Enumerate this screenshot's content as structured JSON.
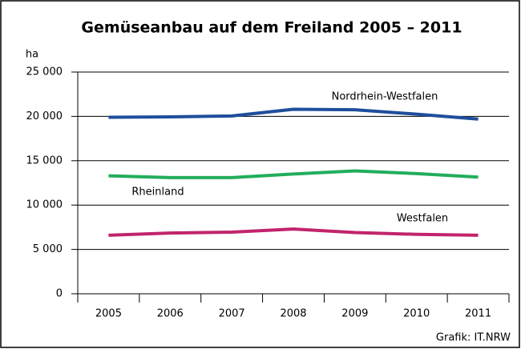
{
  "chart_data": {
    "type": "line",
    "title": "Gemüseanbau auf dem Freiland 2005 – 2011",
    "ylabel": "ha",
    "source": "Grafik: IT.NRW",
    "categories": [
      "2005",
      "2006",
      "2007",
      "2008",
      "2009",
      "2010",
      "2011"
    ],
    "series": [
      {
        "name": "Nordrhein-Westfalen",
        "color": "#1f4e9c",
        "values": [
          19900,
          19950,
          20050,
          20800,
          20750,
          20250,
          19700
        ]
      },
      {
        "name": "Rheinland",
        "color": "#22ad5c",
        "values": [
          13300,
          13100,
          13100,
          13500,
          13850,
          13550,
          13150
        ]
      },
      {
        "name": "Westfalen",
        "color": "#c2246c",
        "values": [
          6600,
          6850,
          6950,
          7300,
          6900,
          6700,
          6600
        ]
      }
    ],
    "ylim": [
      0,
      25000
    ],
    "yticks": [
      0,
      {
        "value": 5000,
        "label": "5 000"
      },
      {
        "value": 10000,
        "label": "10 000"
      },
      {
        "value": 15000,
        "label": "15 000"
      },
      {
        "value": 20000,
        "label": "20 000"
      },
      {
        "value": 25000,
        "label": "25 000"
      }
    ],
    "grid": true
  }
}
